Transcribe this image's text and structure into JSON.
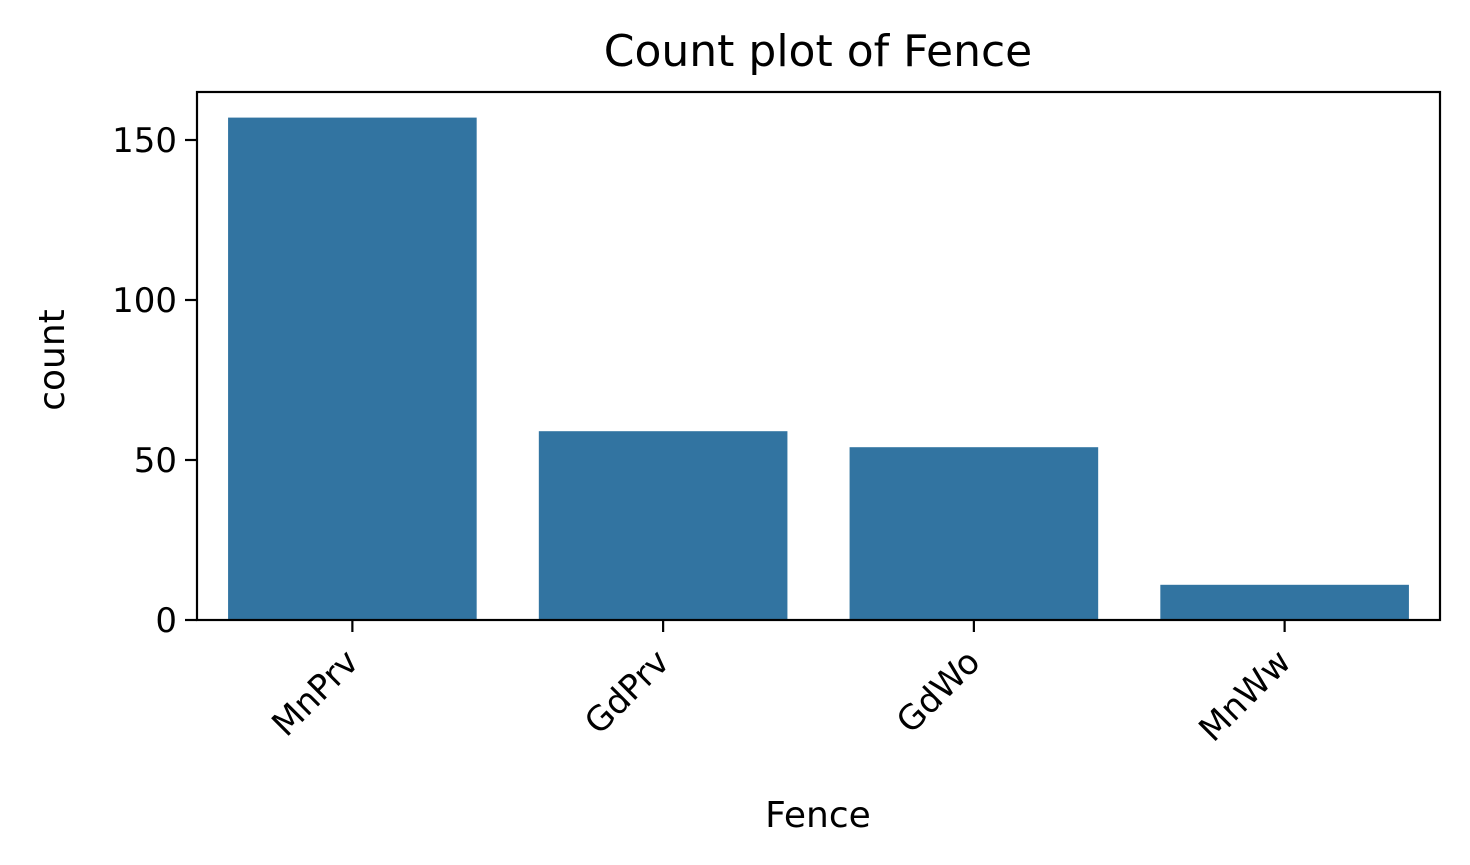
{
  "chart_data": {
    "type": "bar",
    "title": "Count plot of Fence",
    "xlabel": "Fence",
    "ylabel": "count",
    "categories": [
      "MnPrv",
      "GdPrv",
      "GdWo",
      "MnWw"
    ],
    "values": [
      157,
      59,
      54,
      11
    ],
    "ylim": [
      0,
      165
    ],
    "yticks": [
      0,
      50,
      100,
      150
    ],
    "ytick_labels": [
      "0",
      "50",
      "100",
      "150"
    ],
    "xtick_rotation": -45,
    "grid": false,
    "legend": "none",
    "bar_color": "#3274a1"
  }
}
